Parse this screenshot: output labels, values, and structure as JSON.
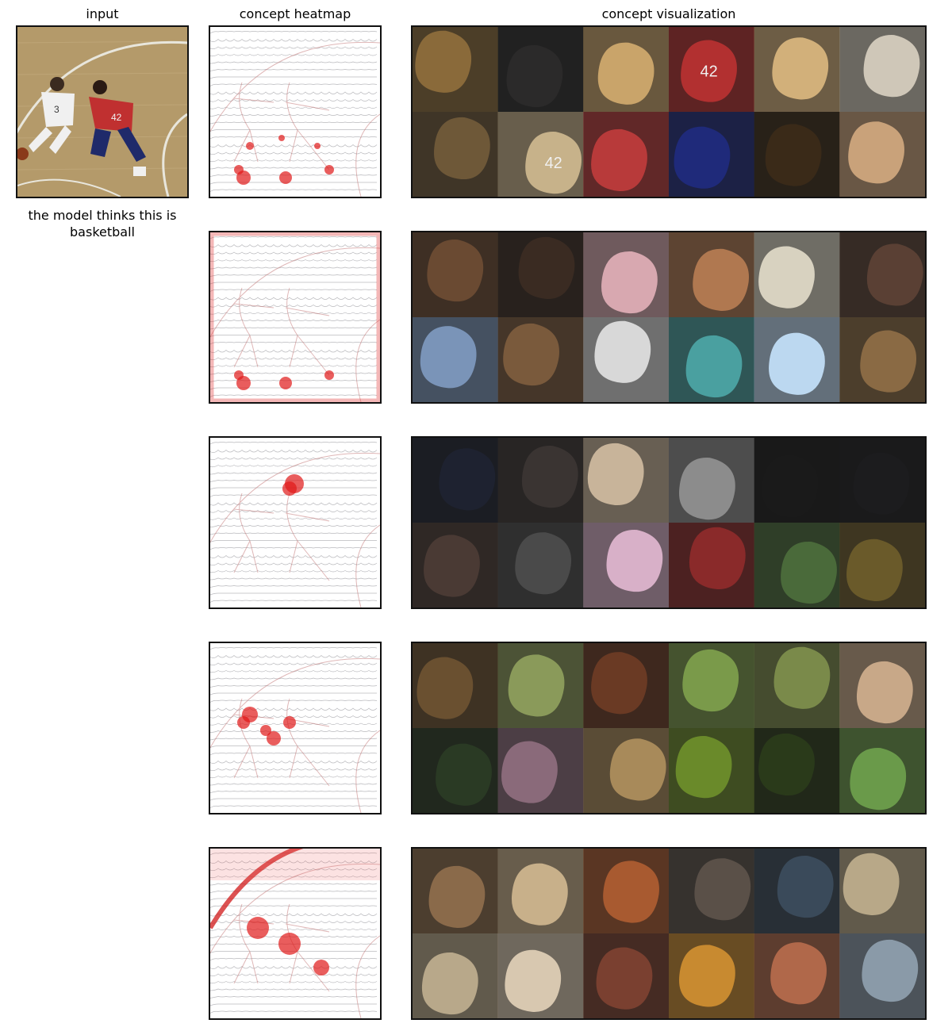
{
  "headers": {
    "input": "input",
    "heatmap": "concept heatmap",
    "visualization": "concept visualization"
  },
  "prediction": {
    "caption": "the model thinks this is basketball"
  },
  "input_image": {
    "jersey_numbers": [
      "3",
      "42"
    ]
  },
  "concepts": [
    {
      "heat_regions": [
        "feet",
        "lower-legs"
      ],
      "tiles": [
        "#8a6a3a",
        "#2b2a2a",
        "#c9a46a",
        "#b23030",
        "#d2b07a",
        "#cfc7b8",
        "#6e5838",
        "#c7b28a",
        "#b83a3a",
        "#1f2a7a",
        "#3a2a18",
        "#c9a27a"
      ],
      "tile_texts": [
        "",
        "",
        "",
        "42",
        "",
        "",
        "",
        "42",
        "",
        "",
        "",
        ""
      ]
    },
    {
      "heat_regions": [
        "image-border",
        "feet"
      ],
      "tiles": [
        "#6a4a32",
        "#3a2b22",
        "#d8a8b0",
        "#b07850",
        "#d8d2c0",
        "#5a4034",
        "#7a94b8",
        "#7a5a3c",
        "#d8d8d8",
        "#4aa0a0",
        "#bcd8f0",
        "#8a6a44"
      ],
      "tile_texts": [
        "",
        "",
        "",
        "",
        "",
        "",
        "",
        "",
        "",
        "",
        "",
        ""
      ]
    },
    {
      "heat_regions": [
        "head"
      ],
      "tiles": [
        "#1e2230",
        "#3a3432",
        "#c8b49a",
        "#8c8c8c",
        "#1a1a1a",
        "#1c1c1e",
        "#4a3a34",
        "#4a4a4a",
        "#d8b0c8",
        "#8a2a2a",
        "#4a6a3a",
        "#6a5a2a"
      ],
      "tile_texts": [
        "",
        "",
        "",
        "",
        "",
        "",
        "",
        "",
        "",
        "",
        "",
        ""
      ]
    },
    {
      "heat_regions": [
        "arms",
        "torso"
      ],
      "tiles": [
        "#6a5030",
        "#8a9a5a",
        "#6a3a24",
        "#7a9a4a",
        "#7a8a4a",
        "#c8a888",
        "#2a3a24",
        "#8a6a7a",
        "#a88a5a",
        "#6a8a2a",
        "#2a3a1a",
        "#6a9a4a"
      ],
      "tile_texts": [
        "",
        "",
        "",
        "",
        "",
        "",
        "",
        "",
        "",
        "",
        "",
        ""
      ]
    },
    {
      "heat_regions": [
        "court-line",
        "bodies"
      ],
      "tiles": [
        "#8a6a4a",
        "#c8b08a",
        "#a85a30",
        "#5a5048",
        "#3a4a5a",
        "#b8a888",
        "#b8a88a",
        "#d8c8b0",
        "#7a4030",
        "#c88a30",
        "#b0684a",
        "#8a9aa8"
      ],
      "tile_texts": [
        "",
        "",
        "",
        "",
        "",
        "",
        "",
        "",
        "",
        "",
        "",
        ""
      ]
    }
  ]
}
